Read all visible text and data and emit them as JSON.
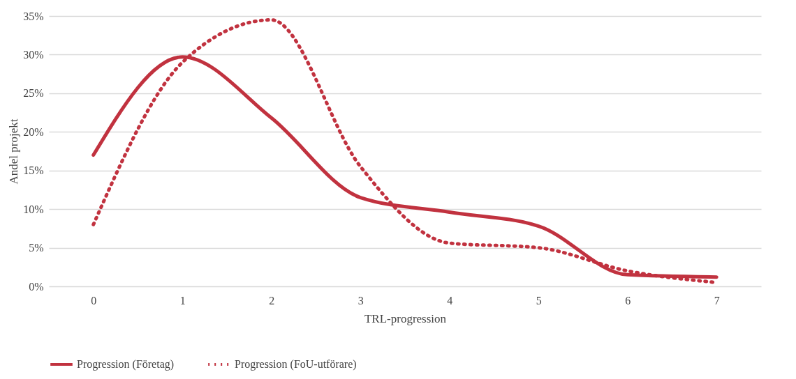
{
  "chart_data": {
    "type": "line",
    "xlabel": "TRL-progression",
    "ylabel": "Andel projekt",
    "categories": [
      "0",
      "1",
      "2",
      "3",
      "4",
      "5",
      "6",
      "7"
    ],
    "series": [
      {
        "name": "Progression (Företag)",
        "color": "#c1323f",
        "line_style": "solid",
        "values": [
          17,
          29.7,
          21.8,
          11.5,
          9.6,
          7.8,
          1.5,
          1.2
        ]
      },
      {
        "name": "Progression (FoU-utförare)",
        "color": "#c1323f",
        "line_style": "dotted",
        "values": [
          8,
          29,
          34.5,
          15.5,
          5.6,
          5.0,
          2.0,
          0.5
        ]
      }
    ],
    "ylim": [
      0,
      35
    ],
    "yticks": [
      {
        "value": 0,
        "label": "0%"
      },
      {
        "value": 5,
        "label": "5%"
      },
      {
        "value": 10,
        "label": "10%"
      },
      {
        "value": 15,
        "label": "15%"
      },
      {
        "value": 20,
        "label": "20%"
      },
      {
        "value": 25,
        "label": "25%"
      },
      {
        "value": 30,
        "label": "30%"
      },
      {
        "value": 35,
        "label": "35%"
      }
    ],
    "grid": "y",
    "legend": "bottom",
    "marker": "none"
  }
}
